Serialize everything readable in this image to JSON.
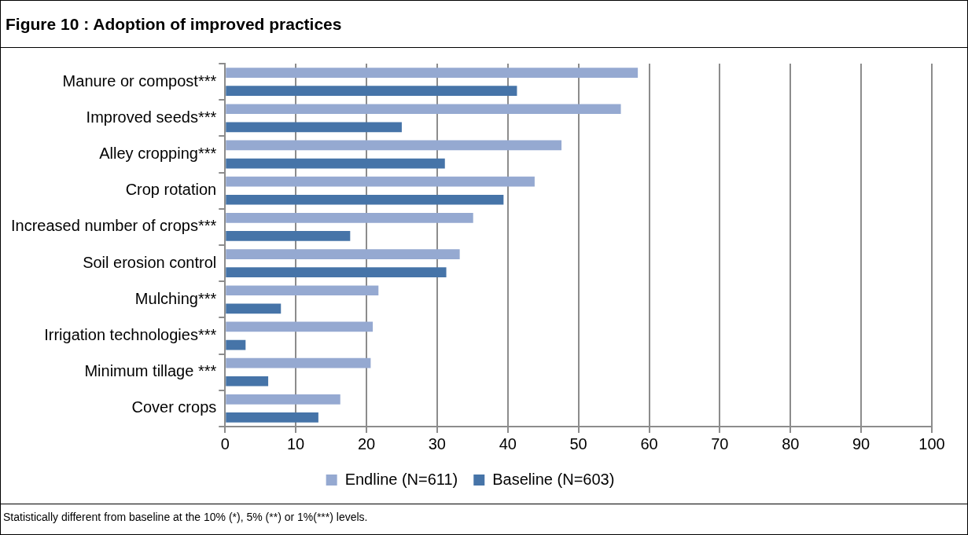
{
  "chart_data": {
    "type": "bar",
    "orientation": "horizontal",
    "title": "Figure 10 : Adoption of improved practices",
    "categories": [
      "Manure or compost***",
      "Improved seeds***",
      "Alley cropping***",
      "Crop rotation",
      "Increased number of crops***",
      "Soil erosion control",
      "Mulching***",
      "Irrigation technologies***",
      "Minimum tillage ***",
      "Cover crops"
    ],
    "series": [
      {
        "name": "Endline (N=611)",
        "color": "#95a9d1",
        "values": [
          58.4,
          56.0,
          47.6,
          43.8,
          35.1,
          33.2,
          21.7,
          20.9,
          20.6,
          16.3
        ]
      },
      {
        "name": "Baseline (N=603)",
        "color": "#4674a8",
        "values": [
          41.3,
          25.0,
          31.1,
          39.4,
          17.7,
          31.3,
          7.9,
          2.9,
          6.1,
          13.2
        ]
      }
    ],
    "xlim": [
      0,
      100
    ],
    "xticks": [
      0,
      10,
      20,
      30,
      40,
      50,
      60,
      70,
      80,
      90,
      100
    ],
    "grid": "x",
    "legend": "bottom",
    "annotations": [
      "Statistically different from baseline at the 10% (*), 5% (**) or 1%(***) levels."
    ]
  }
}
